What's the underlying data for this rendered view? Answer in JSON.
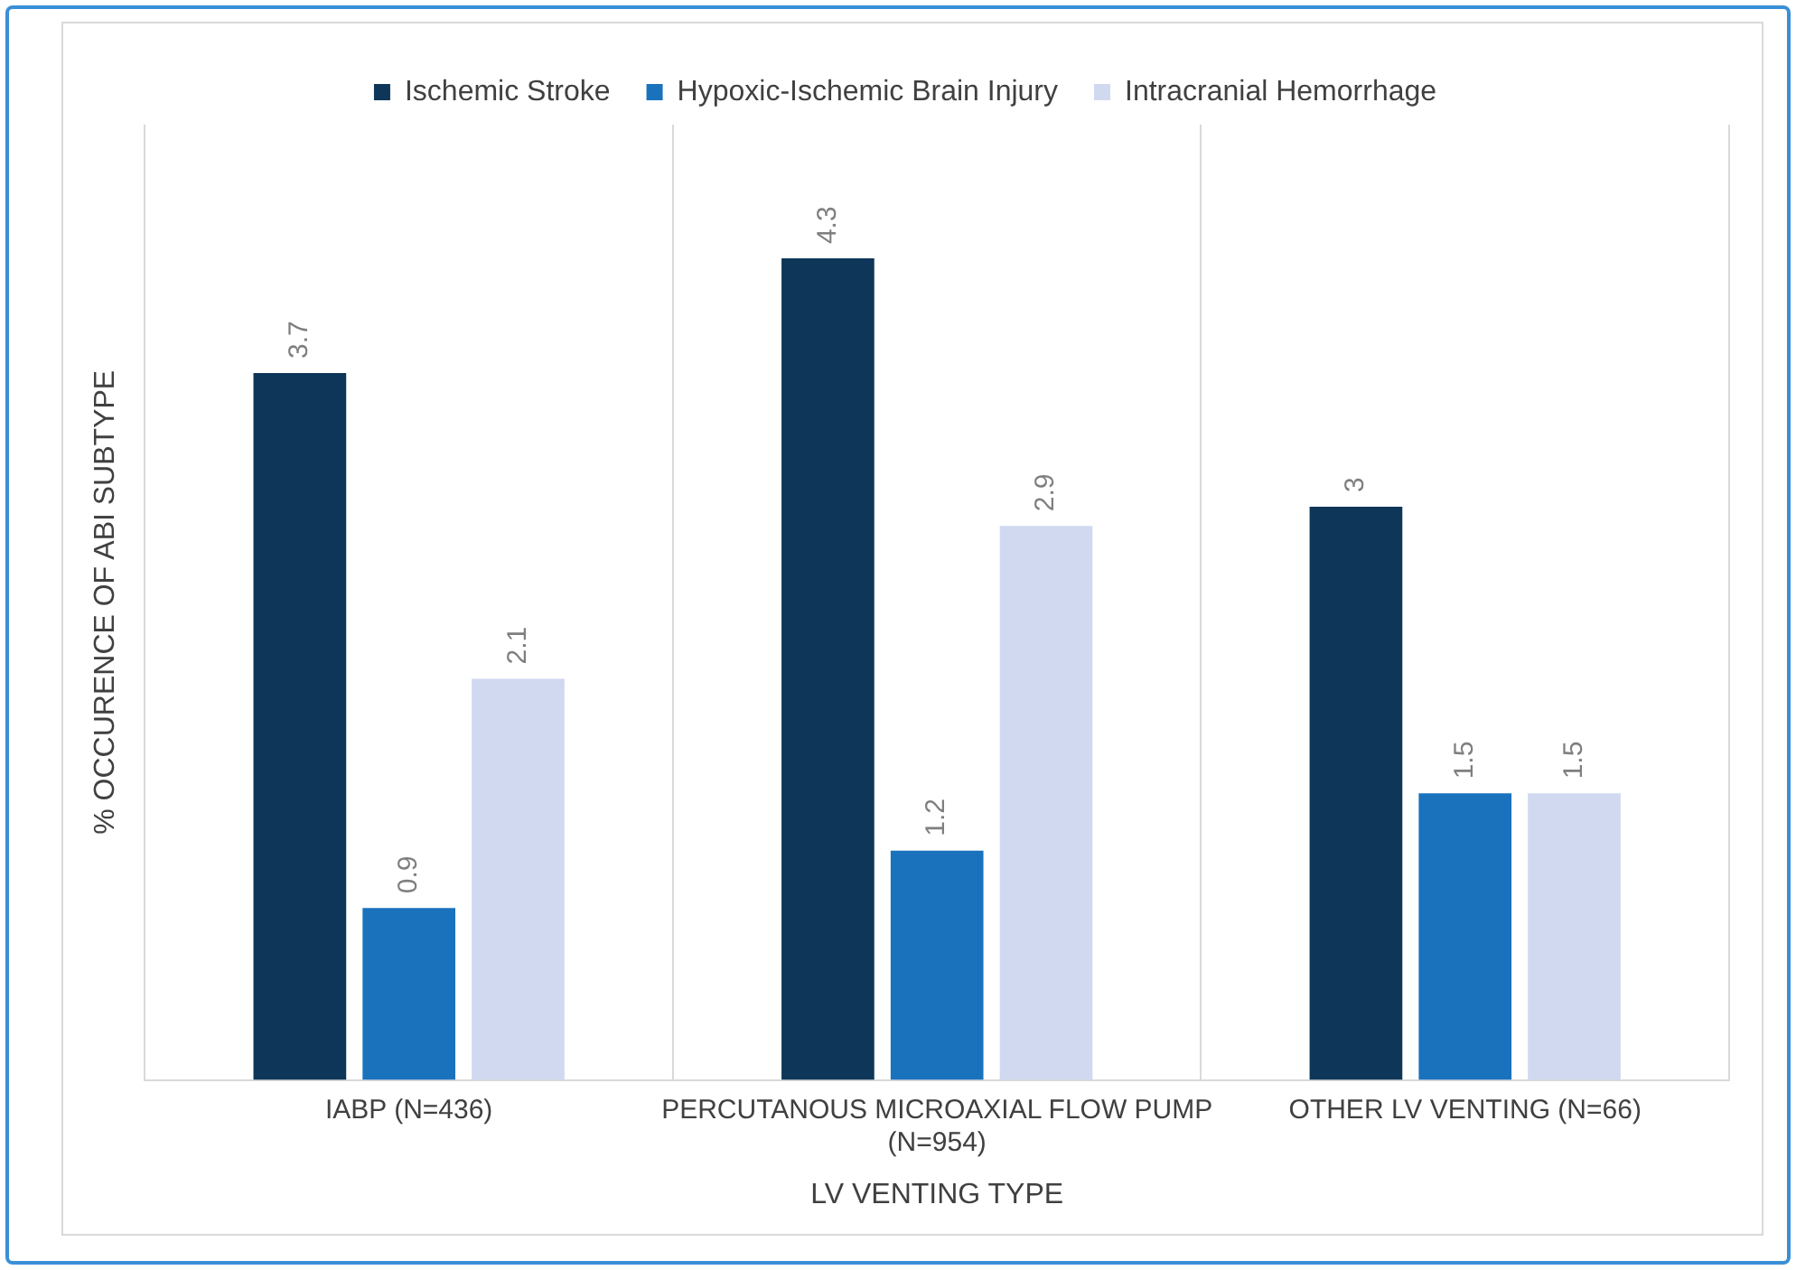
{
  "chart_data": {
    "type": "bar",
    "xlabel": "LV VENTING TYPE",
    "ylabel": "% OCCURENCE OF ABI SUBTYPE",
    "categories": [
      "IABP (N=436)",
      "PERCUTANOUS MICROAXIAL FLOW PUMP (N=954)",
      "OTHER LV VENTING (N=66)"
    ],
    "series": [
      {
        "name": "Ischemic Stroke",
        "color": "#0d3658",
        "values": [
          3.7,
          4.3,
          3
        ]
      },
      {
        "name": "Hypoxic-Ischemic Brain Injury",
        "color": "#1a72bd",
        "values": [
          0.9,
          1.2,
          1.5
        ]
      },
      {
        "name": "Intracranial Hemorrhage",
        "color": "#d0d9f0",
        "values": [
          2.1,
          2.9,
          1.5
        ]
      }
    ],
    "ylim": [
      0,
      5
    ],
    "data_labels": true,
    "grid": "x",
    "legend": "top",
    "tick_labels": "x"
  }
}
